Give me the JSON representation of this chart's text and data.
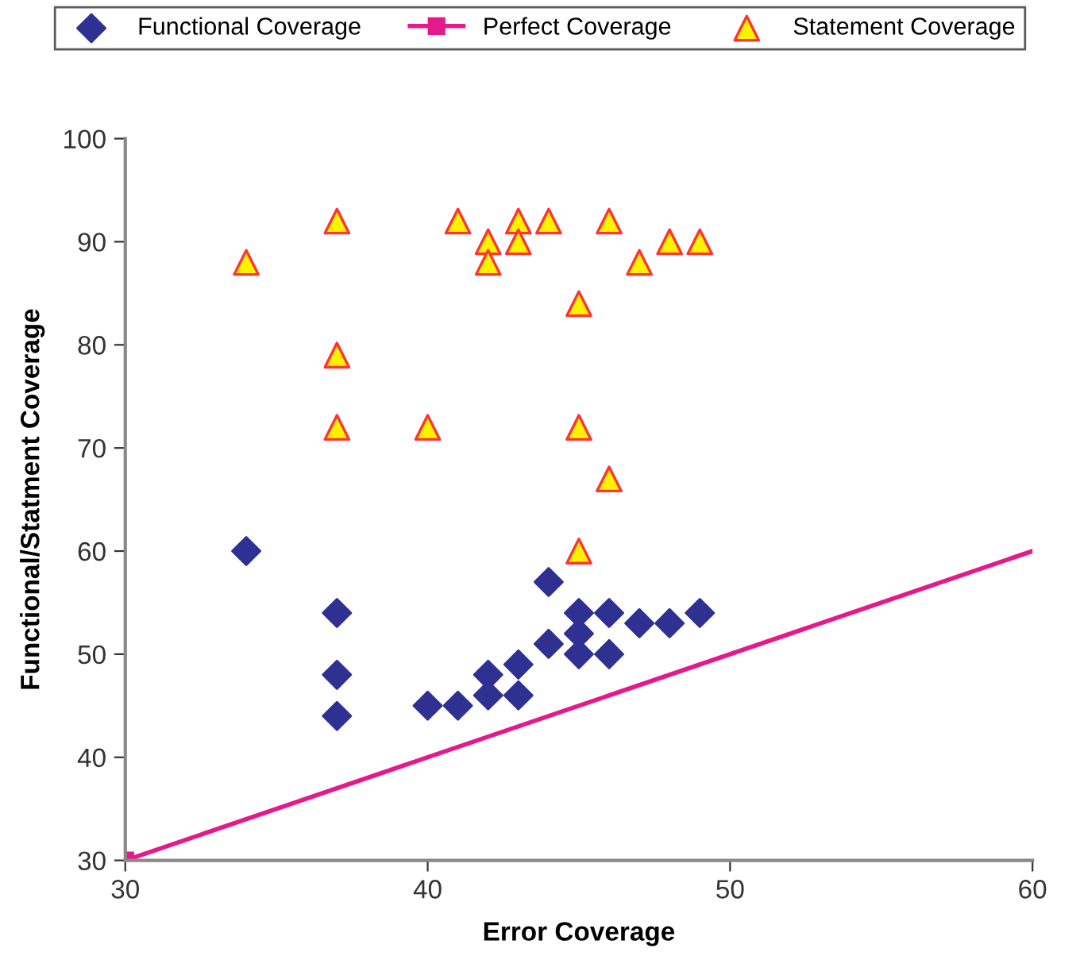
{
  "chart_data": {
    "type": "scatter",
    "xlabel": "Error Coverage",
    "ylabel": "Functional/Statment Coverage",
    "xlim": [
      30,
      60
    ],
    "xticks": [
      30,
      40,
      50,
      60
    ],
    "ylim": [
      30,
      100
    ],
    "yticks": [
      30,
      40,
      50,
      60,
      70,
      80,
      90,
      100
    ],
    "grid": false,
    "legend": "top",
    "series": [
      {
        "name": "Functional Coverage",
        "marker": "diamond",
        "color": "#2e3192",
        "x": [
          34,
          37,
          37,
          37,
          40,
          41,
          42,
          42,
          43,
          43,
          44,
          44,
          45,
          45,
          45,
          46,
          46,
          47,
          48,
          49
        ],
        "values": [
          60,
          54,
          48,
          44,
          45,
          45,
          48,
          46,
          49,
          46,
          57,
          51,
          54,
          52,
          50,
          54,
          50,
          53,
          53,
          54
        ]
      },
      {
        "name": "Perfect Coverage",
        "type": "line",
        "marker": "square",
        "line_style": "solid",
        "color": "#e6198c",
        "x": [
          30,
          60
        ],
        "values": [
          30,
          60
        ]
      },
      {
        "name": "Statement Coverage",
        "marker": "triangle",
        "color": "#fff200",
        "x": [
          34,
          37,
          37,
          37,
          40,
          41,
          42,
          42,
          43,
          43,
          44,
          45,
          45,
          45,
          46,
          46,
          47,
          48,
          49
        ],
        "values": [
          88,
          92,
          79,
          72,
          72,
          92,
          90,
          88,
          92,
          90,
          92,
          84,
          72,
          60,
          92,
          67,
          88,
          90,
          90
        ]
      }
    ]
  }
}
